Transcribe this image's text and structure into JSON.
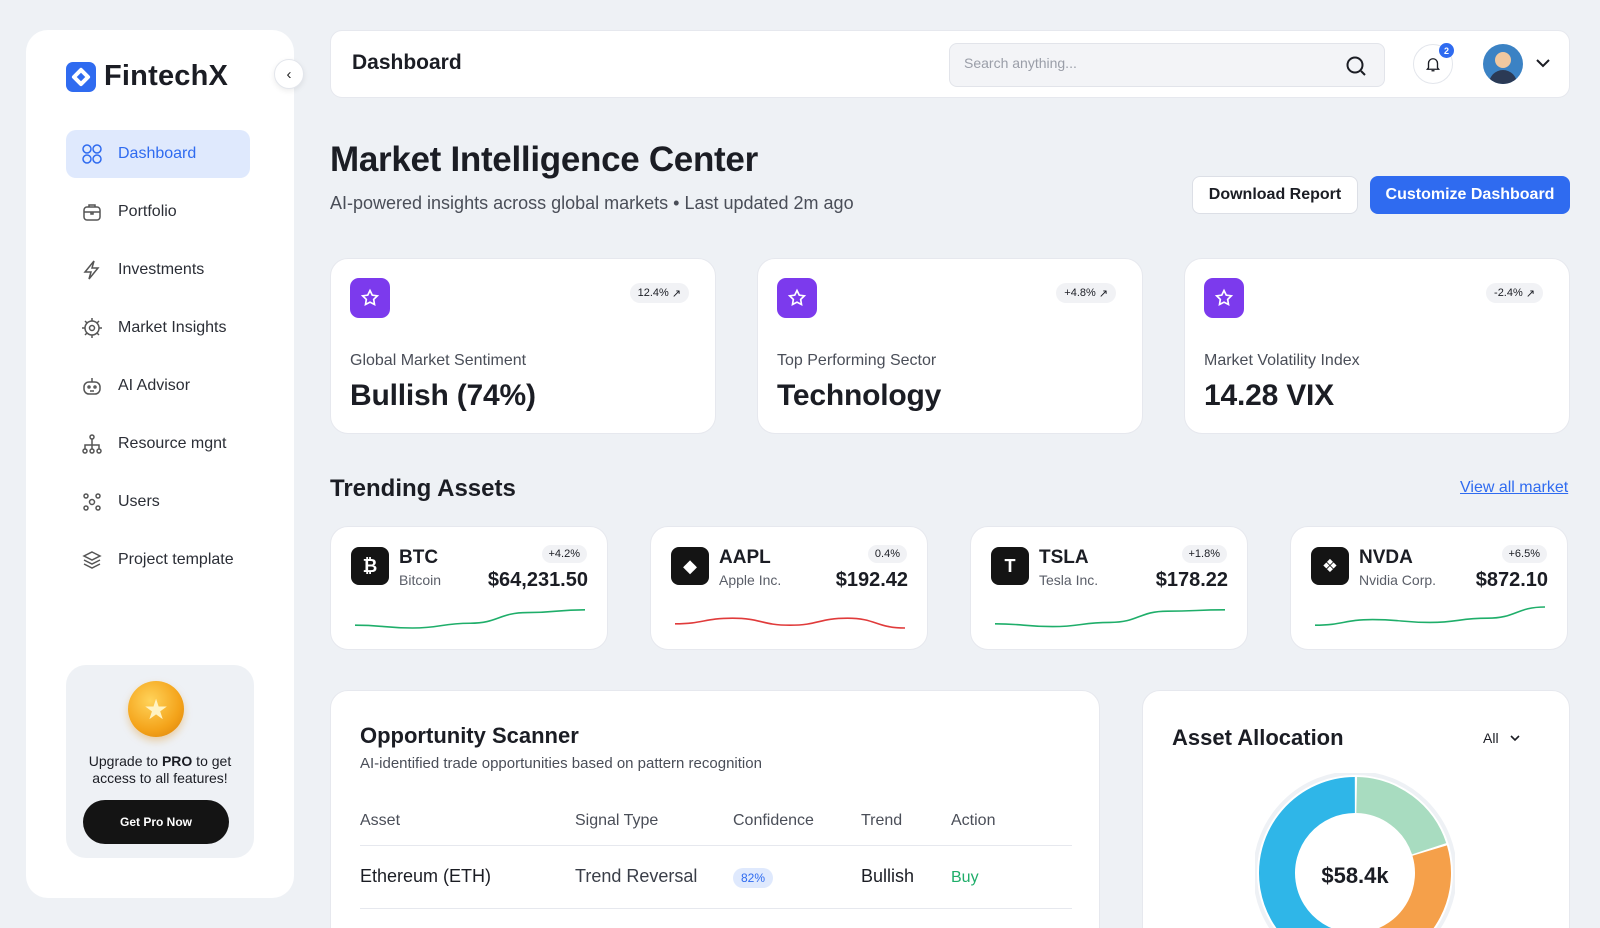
{
  "app": {
    "name": "FintechX"
  },
  "sidebar": {
    "items": [
      {
        "label": "Dashboard",
        "icon": "grid-icon",
        "active": true
      },
      {
        "label": "Portfolio",
        "icon": "briefcase-icon"
      },
      {
        "label": "Investments",
        "icon": "lightning-icon"
      },
      {
        "label": "Market Insights",
        "icon": "gear-chart-icon"
      },
      {
        "label": "AI Advisor",
        "icon": "robot-icon"
      },
      {
        "label": "Resource mgnt",
        "icon": "hierarchy-icon"
      },
      {
        "label": "Users",
        "icon": "users-icon"
      },
      {
        "label": "Project template",
        "icon": "layers-icon"
      }
    ],
    "promo": {
      "text_before": "Upgrade to ",
      "text_bold": "PRO",
      "text_after": " to get access to all features!",
      "button": "Get Pro Now"
    }
  },
  "topbar": {
    "title": "Dashboard",
    "search_placeholder": "Search anything...",
    "notifications": "2"
  },
  "header": {
    "title": "Market Intelligence Center",
    "subtitle": "AI-powered insights across global markets • Last updated 2m ago",
    "download_label": "Download Report",
    "customize_label": "Customize Dashboard"
  },
  "kpis": [
    {
      "badge": "12.4%",
      "label": "Global Market Sentiment",
      "value": "Bullish (74%)"
    },
    {
      "badge": "+4.8%",
      "label": "Top Performing Sector",
      "value": "Technology"
    },
    {
      "badge": "-2.4%",
      "label": "Market Volatility Index",
      "value": "14.28 VIX"
    }
  ],
  "trending": {
    "title": "Trending Assets",
    "view_all": "View all market",
    "assets": [
      {
        "symbol": "BTC",
        "name": "Bitcoin",
        "change": "+4.2%",
        "price": "$64,231.50",
        "trend": "up",
        "color": "#1fae6a",
        "spark": [
          0.35,
          0.25,
          0.42,
          0.8,
          0.9
        ]
      },
      {
        "symbol": "AAPL",
        "name": "Apple Inc.",
        "change": "0.4%",
        "price": "$192.42",
        "trend": "down",
        "color": "#e03b3b",
        "spark": [
          0.4,
          0.6,
          0.35,
          0.6,
          0.25
        ]
      },
      {
        "symbol": "TSLA",
        "name": "Tesla Inc.",
        "change": "+1.8%",
        "price": "$178.22",
        "trend": "up",
        "color": "#1fae6a",
        "spark": [
          0.4,
          0.3,
          0.45,
          0.85,
          0.9
        ]
      },
      {
        "symbol": "NVDA",
        "name": "Nvidia Corp.",
        "change": "+6.5%",
        "price": "$872.10",
        "trend": "up",
        "color": "#1fae6a",
        "spark": [
          0.35,
          0.55,
          0.45,
          0.6,
          1.0
        ]
      }
    ]
  },
  "scanner": {
    "title": "Opportunity Scanner",
    "subtitle": "AI-identified trade opportunities based on pattern recognition",
    "columns": [
      "Asset",
      "Signal Type",
      "Confidence",
      "Trend",
      "Action"
    ],
    "rows": [
      {
        "asset": "Ethereum (ETH)",
        "signal": "Trend Reversal",
        "confidence": "82%",
        "trend": "Bullish",
        "action": "Buy"
      }
    ]
  },
  "allocation": {
    "title": "Asset Allocation",
    "filter": "All",
    "total": "$58.4k",
    "slices": [
      {
        "color": "#a8dcc0",
        "fraction": 0.2
      },
      {
        "color": "#f5a04a",
        "fraction": 0.25
      },
      {
        "color": "#2fb6e8",
        "fraction": 0.55
      }
    ]
  }
}
